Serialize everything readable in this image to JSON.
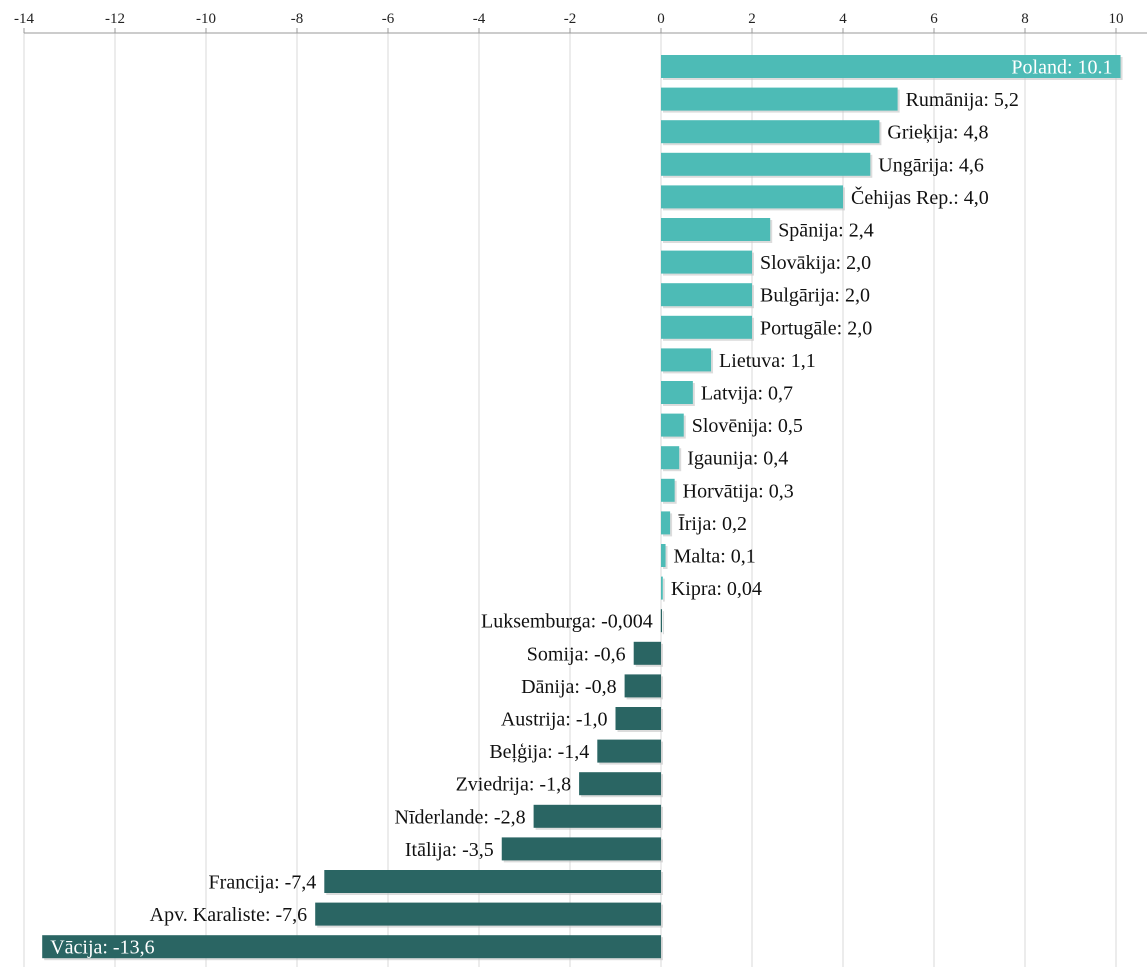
{
  "chart_data": {
    "type": "bar",
    "orientation": "horizontal",
    "title": "",
    "xlabel": "",
    "ylabel": "",
    "xlim": [
      -14,
      10
    ],
    "x_ticks": [
      -14,
      -12,
      -10,
      -8,
      -6,
      -4,
      -2,
      0,
      2,
      4,
      6,
      8,
      10
    ],
    "grid": true,
    "axis_position": "top",
    "colors": {
      "positive": "#4DBBB6",
      "negative": "#2A6563"
    },
    "bars": [
      {
        "label": "Poland: 10.1",
        "value": 10.1
      },
      {
        "label": "Rumānija: 5,2",
        "value": 5.2
      },
      {
        "label": "Grieķija: 4,8",
        "value": 4.8
      },
      {
        "label": "Ungārija: 4,6",
        "value": 4.6
      },
      {
        "label": "Čehijas Rep.: 4,0",
        "value": 4.0
      },
      {
        "label": "Spānija: 2,4",
        "value": 2.4
      },
      {
        "label": "Slovākija: 2,0",
        "value": 2.0
      },
      {
        "label": "Bulgārija: 2,0",
        "value": 2.0
      },
      {
        "label": "Portugāle: 2,0",
        "value": 2.0
      },
      {
        "label": "Lietuva: 1,1",
        "value": 1.1
      },
      {
        "label": "Latvija: 0,7",
        "value": 0.7
      },
      {
        "label": "Slovēnija: 0,5",
        "value": 0.5
      },
      {
        "label": "Igaunija: 0,4",
        "value": 0.4
      },
      {
        "label": "Horvātija: 0,3",
        "value": 0.3
      },
      {
        "label": "Īrija: 0,2",
        "value": 0.2
      },
      {
        "label": "Malta: 0,1",
        "value": 0.1
      },
      {
        "label": "Kipra: 0,04",
        "value": 0.04
      },
      {
        "label": "Luksemburga: -0,004",
        "value": -0.004
      },
      {
        "label": "Somija: -0,6",
        "value": -0.6
      },
      {
        "label": "Dānija: -0,8",
        "value": -0.8
      },
      {
        "label": "Austrija: -1,0",
        "value": -1.0
      },
      {
        "label": "Beļģija: -1,4",
        "value": -1.4
      },
      {
        "label": "Zviedrija: -1,8",
        "value": -1.8
      },
      {
        "label": "Nīderlande: -2,8",
        "value": -2.8
      },
      {
        "label": "Itālija: -3,5",
        "value": -3.5
      },
      {
        "label": "Francija: -7,4",
        "value": -7.4
      },
      {
        "label": "Apv. Karaliste: -7,6",
        "value": -7.6
      },
      {
        "label": "Vācija: -13,6",
        "value": -13.6
      }
    ]
  }
}
